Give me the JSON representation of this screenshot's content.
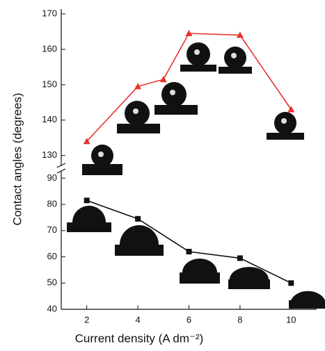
{
  "chart_data": {
    "type": "line",
    "xlabel": "Current density (A dm⁻²)",
    "ylabel": "Contact angles (degrees)",
    "xlim": [
      1,
      11
    ],
    "xticks": [
      2,
      4,
      6,
      8,
      10
    ],
    "ylim": [
      40,
      170
    ],
    "ybreak": [
      93,
      127
    ],
    "yticks": [
      40,
      50,
      60,
      70,
      80,
      90,
      130,
      140,
      150,
      160,
      170
    ],
    "series": [
      {
        "color": "#e8312a",
        "marker": "triangle",
        "x": [
          2,
          4,
          5,
          6,
          8,
          10
        ],
        "values": [
          134,
          149.5,
          151.5,
          164.5,
          164,
          143
        ]
      },
      {
        "color": "#111111",
        "marker": "square",
        "x": [
          2,
          4,
          6,
          8,
          10
        ],
        "values": [
          81.5,
          74.5,
          62,
          59.5,
          50
        ]
      }
    ]
  }
}
